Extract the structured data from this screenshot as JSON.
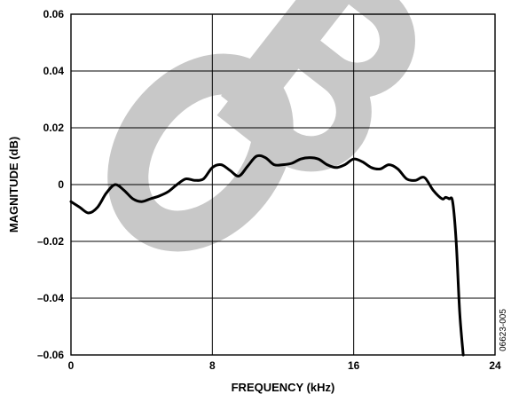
{
  "chart_data": {
    "type": "line",
    "title": "",
    "xlabel": "FREQUENCY (kHz)",
    "ylabel": "MAGNITUDE (dB)",
    "xlim": [
      0,
      24
    ],
    "ylim": [
      -0.06,
      0.06
    ],
    "x_ticks": [
      "0",
      "8",
      "16",
      "24"
    ],
    "x_tick_values": [
      0,
      8,
      16,
      24
    ],
    "y_ticks": [
      "0.06",
      "0.04",
      "0.02",
      "0",
      "–0.02",
      "–0.04",
      "–0.06"
    ],
    "y_tick_values": [
      0.06,
      0.04,
      0.02,
      0,
      -0.02,
      -0.04,
      -0.06
    ],
    "grid": true,
    "figure_id": "06623-005",
    "watermark": "OBSOLETE",
    "watermark_color": "#c8c8c8",
    "line_color": "#000000",
    "series": [
      {
        "x": [
          0,
          0.5,
          1.0,
          1.5,
          2.0,
          2.5,
          3.0,
          3.5,
          4.0,
          4.5,
          5.0,
          5.5,
          6.0,
          6.5,
          7.0,
          7.5,
          8.0,
          8.5,
          9.0,
          9.5,
          10.0,
          10.5,
          11.0,
          11.5,
          12.0,
          12.5,
          13.0,
          13.5,
          14.0,
          14.5,
          15.0,
          15.5,
          16.0,
          16.5,
          17.0,
          17.5,
          18.0,
          18.5,
          19.0,
          19.5,
          20.0,
          20.5,
          21.0,
          21.2,
          21.4,
          21.6,
          21.8,
          22.0,
          22.2
        ],
        "y": [
          -0.006,
          -0.008,
          -0.01,
          -0.008,
          -0.003,
          0.0,
          -0.002,
          -0.005,
          -0.006,
          -0.005,
          -0.004,
          -0.0025,
          0.0,
          0.002,
          0.0015,
          0.002,
          0.006,
          0.007,
          0.005,
          0.003,
          0.0065,
          0.01,
          0.0095,
          0.007,
          0.007,
          0.0075,
          0.009,
          0.0095,
          0.009,
          0.007,
          0.006,
          0.007,
          0.009,
          0.008,
          0.006,
          0.0055,
          0.007,
          0.0055,
          0.002,
          0.0015,
          0.0025,
          -0.002,
          -0.005,
          -0.0045,
          -0.005,
          -0.006,
          -0.02,
          -0.045,
          -0.062
        ]
      }
    ]
  }
}
